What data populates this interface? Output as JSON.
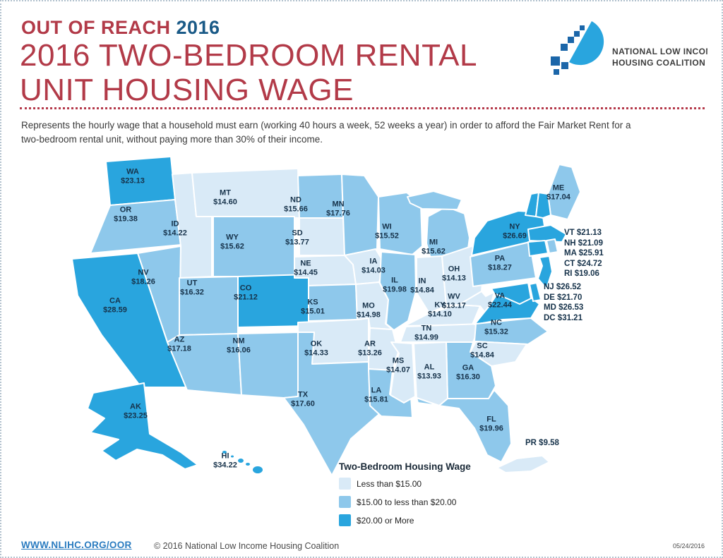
{
  "header": {
    "kicker": "OUT OF REACH ",
    "kicker_year": "2016",
    "title_line1": "2016 TWO-BEDROOM RENTAL",
    "title_line2": "UNIT HOUSING WAGE"
  },
  "logo": {
    "name_line1": "NATIONAL LOW INCOME",
    "name_line2": "HOUSING COALITION"
  },
  "intro": "Represents the hourly wage that a household must earn (working 40 hours a week, 52 weeks a year) in order to afford the Fair Market Rent for a two-bedroom rental unit, without paying more than 30% of their income.",
  "colors": {
    "low": "#d9eaf7",
    "mid": "#8ec8eb",
    "high": "#29a5de",
    "accent_red": "#b23a48",
    "accent_blue": "#1a5a87",
    "label_navy": "#16324a"
  },
  "legend": {
    "title": "Two-Bedroom Housing Wage",
    "items": [
      {
        "label": "Less than $15.00",
        "level": "low"
      },
      {
        "label": "$15.00 to less than $20.00",
        "level": "mid"
      },
      {
        "label": "$20.00 or More",
        "level": "high"
      }
    ]
  },
  "chart_data": {
    "type": "choropleth-map",
    "title": "2016 Two-Bedroom Rental Unit Housing Wage",
    "unit": "USD per hour",
    "levels": {
      "low": "Less than $15.00",
      "mid": "$15.00 to less than $20.00",
      "high": "$20.00 or More"
    },
    "states": [
      {
        "abbr": "WA",
        "value": 23.13,
        "level": "high"
      },
      {
        "abbr": "OR",
        "value": 19.38,
        "level": "mid"
      },
      {
        "abbr": "CA",
        "value": 28.59,
        "level": "high"
      },
      {
        "abbr": "ID",
        "value": 14.22,
        "level": "low"
      },
      {
        "abbr": "NV",
        "value": 18.26,
        "level": "mid"
      },
      {
        "abbr": "UT",
        "value": 16.32,
        "level": "mid"
      },
      {
        "abbr": "AZ",
        "value": 17.18,
        "level": "mid"
      },
      {
        "abbr": "MT",
        "value": 14.6,
        "level": "low"
      },
      {
        "abbr": "WY",
        "value": 15.62,
        "level": "mid"
      },
      {
        "abbr": "CO",
        "value": 21.12,
        "level": "high"
      },
      {
        "abbr": "NM",
        "value": 16.06,
        "level": "mid"
      },
      {
        "abbr": "ND",
        "value": 15.66,
        "level": "mid"
      },
      {
        "abbr": "SD",
        "value": 13.77,
        "level": "low"
      },
      {
        "abbr": "NE",
        "value": 14.45,
        "level": "low"
      },
      {
        "abbr": "KS",
        "value": 15.01,
        "level": "mid"
      },
      {
        "abbr": "OK",
        "value": 14.33,
        "level": "low"
      },
      {
        "abbr": "TX",
        "value": 17.6,
        "level": "mid"
      },
      {
        "abbr": "MN",
        "value": 17.76,
        "level": "mid"
      },
      {
        "abbr": "IA",
        "value": 14.03,
        "level": "low"
      },
      {
        "abbr": "MO",
        "value": 14.98,
        "level": "low"
      },
      {
        "abbr": "AR",
        "value": 13.26,
        "level": "low"
      },
      {
        "abbr": "LA",
        "value": 15.81,
        "level": "mid"
      },
      {
        "abbr": "WI",
        "value": 15.52,
        "level": "mid"
      },
      {
        "abbr": "IL",
        "value": 19.98,
        "level": "mid"
      },
      {
        "abbr": "MS",
        "value": 14.07,
        "level": "low"
      },
      {
        "abbr": "MI",
        "value": 15.62,
        "level": "mid"
      },
      {
        "abbr": "IN",
        "value": 14.84,
        "level": "low"
      },
      {
        "abbr": "OH",
        "value": 14.13,
        "level": "low"
      },
      {
        "abbr": "KY",
        "value": 14.1,
        "level": "low"
      },
      {
        "abbr": "TN",
        "value": 14.99,
        "level": "low"
      },
      {
        "abbr": "AL",
        "value": 13.93,
        "level": "low"
      },
      {
        "abbr": "GA",
        "value": 16.3,
        "level": "mid"
      },
      {
        "abbr": "FL",
        "value": 19.96,
        "level": "mid"
      },
      {
        "abbr": "SC",
        "value": 14.84,
        "level": "low"
      },
      {
        "abbr": "NC",
        "value": 15.32,
        "level": "mid"
      },
      {
        "abbr": "WV",
        "value": 13.17,
        "level": "low"
      },
      {
        "abbr": "VA",
        "value": 22.44,
        "level": "high"
      },
      {
        "abbr": "PA",
        "value": 18.27,
        "level": "mid"
      },
      {
        "abbr": "NY",
        "value": 26.69,
        "level": "high"
      },
      {
        "abbr": "ME",
        "value": 17.04,
        "level": "mid"
      },
      {
        "abbr": "VT",
        "value": 21.13,
        "level": "high"
      },
      {
        "abbr": "NH",
        "value": 21.09,
        "level": "high"
      },
      {
        "abbr": "MA",
        "value": 25.91,
        "level": "high"
      },
      {
        "abbr": "CT",
        "value": 24.72,
        "level": "high"
      },
      {
        "abbr": "RI",
        "value": 19.06,
        "level": "mid"
      },
      {
        "abbr": "NJ",
        "value": 26.52,
        "level": "high"
      },
      {
        "abbr": "DE",
        "value": 21.7,
        "level": "high"
      },
      {
        "abbr": "MD",
        "value": 26.53,
        "level": "high"
      },
      {
        "abbr": "DC",
        "value": 31.21,
        "level": "high"
      },
      {
        "abbr": "AK",
        "value": 23.25,
        "level": "high"
      },
      {
        "abbr": "HI",
        "value": 34.22,
        "level": "high"
      },
      {
        "abbr": "PR",
        "value": 9.58,
        "level": "low"
      }
    ],
    "side_lists": [
      {
        "items": [
          "VT",
          "NH",
          "MA",
          "CT",
          "RI"
        ]
      },
      {
        "items": [
          "NJ",
          "DE",
          "MD",
          "DC"
        ]
      }
    ]
  },
  "footer": {
    "link": "WWW.NLIHC.ORG/OOR",
    "copyright": "© 2016 National Low Income Housing Coalition",
    "date": "05/24/2016"
  }
}
